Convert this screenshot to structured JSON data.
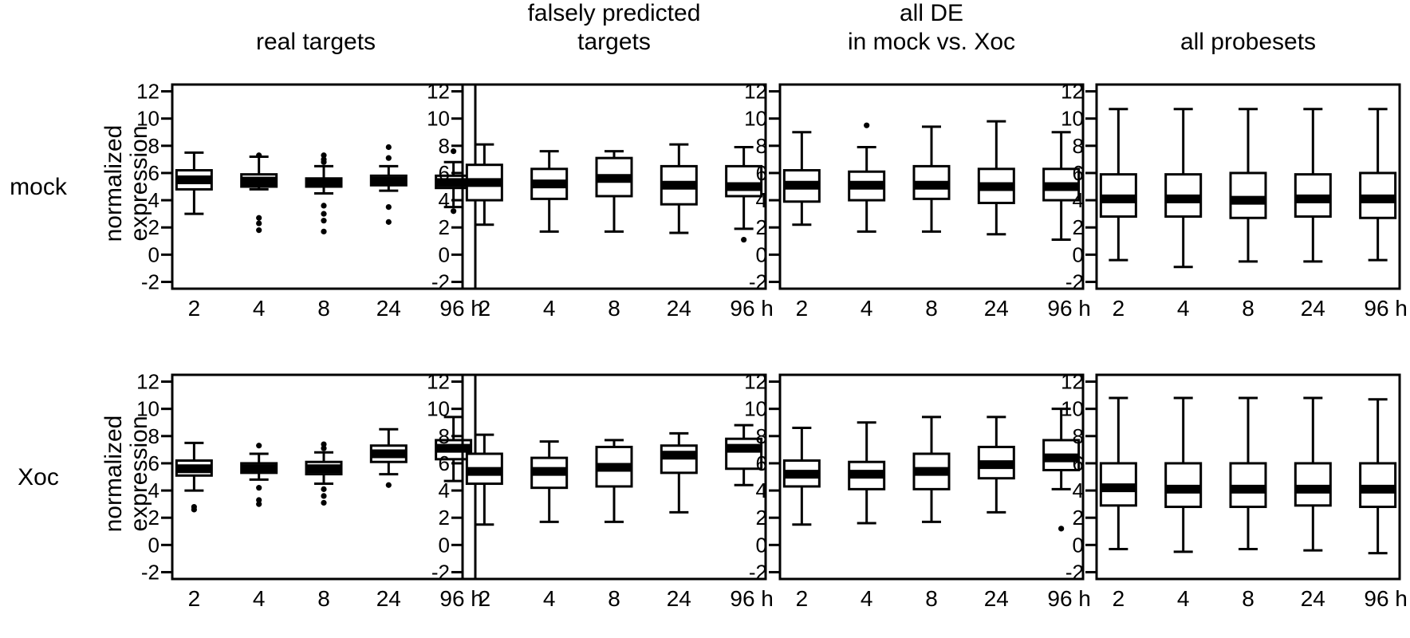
{
  "columns": [
    "real targets",
    "falsely predicted\ntargets",
    "all DE\nin mock vs. Xoc",
    "all probesets"
  ],
  "rows": [
    "mock",
    "Xoc"
  ],
  "ylabel": "normalized\nexpression",
  "categories": [
    "2",
    "4",
    "8",
    "24",
    "96 h"
  ],
  "yticks": [
    12,
    10,
    8,
    6,
    4,
    2,
    0,
    -2
  ],
  "chart_data": [
    {
      "type": "boxplot",
      "row": "mock",
      "column": "real targets",
      "categories": [
        "2",
        "4",
        "8",
        "24",
        "96 h"
      ],
      "ylim": [
        -2.5,
        12.5
      ],
      "boxes": [
        {
          "min": 3.0,
          "q1": 4.8,
          "median": 5.5,
          "q3": 6.2,
          "max": 7.5,
          "outliers": []
        },
        {
          "min": 4.8,
          "q1": 5.0,
          "median": 5.4,
          "q3": 5.9,
          "max": 7.2,
          "outliers": [
            2.7,
            2.3,
            1.8,
            7.3
          ]
        },
        {
          "min": 4.5,
          "q1": 5.0,
          "median": 5.3,
          "q3": 5.6,
          "max": 6.5,
          "outliers": [
            7.3,
            7.0,
            6.8,
            3.6,
            3.0,
            2.5,
            1.7
          ]
        },
        {
          "min": 4.7,
          "q1": 5.1,
          "median": 5.4,
          "q3": 5.8,
          "max": 6.5,
          "outliers": [
            7.9,
            7.1,
            3.5,
            2.4
          ]
        },
        {
          "min": 3.5,
          "q1": 4.9,
          "median": 5.3,
          "q3": 5.8,
          "max": 6.8,
          "outliers": [
            7.6,
            3.2
          ]
        }
      ]
    },
    {
      "type": "boxplot",
      "row": "mock",
      "column": "falsely predicted targets",
      "categories": [
        "2",
        "4",
        "8",
        "24",
        "96 h"
      ],
      "ylim": [
        -2.5,
        12.5
      ],
      "boxes": [
        {
          "min": 2.2,
          "q1": 4.0,
          "median": 5.3,
          "q3": 6.6,
          "max": 8.1,
          "outliers": []
        },
        {
          "min": 1.7,
          "q1": 4.1,
          "median": 5.2,
          "q3": 6.3,
          "max": 7.6,
          "outliers": []
        },
        {
          "min": 1.7,
          "q1": 4.3,
          "median": 5.6,
          "q3": 7.1,
          "max": 7.6,
          "outliers": []
        },
        {
          "min": 1.6,
          "q1": 3.7,
          "median": 5.1,
          "q3": 6.5,
          "max": 8.1,
          "outliers": []
        },
        {
          "min": 1.9,
          "q1": 4.3,
          "median": 5.0,
          "q3": 6.5,
          "max": 7.9,
          "outliers": [
            1.1
          ]
        }
      ]
    },
    {
      "type": "boxplot",
      "row": "mock",
      "column": "all DE in mock vs. Xoc",
      "categories": [
        "2",
        "4",
        "8",
        "24",
        "96 h"
      ],
      "ylim": [
        -2.5,
        12.5
      ],
      "boxes": [
        {
          "min": 2.2,
          "q1": 3.9,
          "median": 5.1,
          "q3": 6.2,
          "max": 9.0,
          "outliers": []
        },
        {
          "min": 1.7,
          "q1": 4.0,
          "median": 5.1,
          "q3": 6.1,
          "max": 7.9,
          "outliers": [
            9.5
          ]
        },
        {
          "min": 1.7,
          "q1": 4.1,
          "median": 5.1,
          "q3": 6.5,
          "max": 9.4,
          "outliers": []
        },
        {
          "min": 1.5,
          "q1": 3.8,
          "median": 5.0,
          "q3": 6.3,
          "max": 9.8,
          "outliers": []
        },
        {
          "min": 1.1,
          "q1": 4.0,
          "median": 5.0,
          "q3": 6.3,
          "max": 9.0,
          "outliers": []
        }
      ]
    },
    {
      "type": "boxplot",
      "row": "mock",
      "column": "all probesets",
      "categories": [
        "2",
        "4",
        "8",
        "24",
        "96 h"
      ],
      "ylim": [
        -2.5,
        12.5
      ],
      "boxes": [
        {
          "min": -0.4,
          "q1": 2.8,
          "median": 4.1,
          "q3": 5.9,
          "max": 10.7,
          "outliers": []
        },
        {
          "min": -0.9,
          "q1": 2.8,
          "median": 4.1,
          "q3": 5.9,
          "max": 10.7,
          "outliers": []
        },
        {
          "min": -0.5,
          "q1": 2.7,
          "median": 4.0,
          "q3": 6.0,
          "max": 10.7,
          "outliers": []
        },
        {
          "min": -0.5,
          "q1": 2.8,
          "median": 4.1,
          "q3": 5.9,
          "max": 10.7,
          "outliers": []
        },
        {
          "min": -0.4,
          "q1": 2.7,
          "median": 4.1,
          "q3": 6.0,
          "max": 10.7,
          "outliers": []
        }
      ]
    },
    {
      "type": "boxplot",
      "row": "Xoc",
      "column": "real targets",
      "categories": [
        "2",
        "4",
        "8",
        "24",
        "96 h"
      ],
      "ylim": [
        -2.5,
        12.5
      ],
      "boxes": [
        {
          "min": 4.0,
          "q1": 5.1,
          "median": 5.6,
          "q3": 6.2,
          "max": 7.5,
          "outliers": [
            2.8,
            2.6
          ]
        },
        {
          "min": 4.8,
          "q1": 5.3,
          "median": 5.6,
          "q3": 6.0,
          "max": 6.7,
          "outliers": [
            7.3,
            4.2,
            3.3,
            3.0
          ]
        },
        {
          "min": 4.5,
          "q1": 5.2,
          "median": 5.6,
          "q3": 6.1,
          "max": 6.8,
          "outliers": [
            7.4,
            7.1,
            4.1,
            3.6,
            3.1
          ]
        },
        {
          "min": 5.2,
          "q1": 6.1,
          "median": 6.7,
          "q3": 7.3,
          "max": 8.5,
          "outliers": [
            4.4
          ]
        },
        {
          "min": 4.7,
          "q1": 6.3,
          "median": 7.1,
          "q3": 7.7,
          "max": 9.4,
          "outliers": []
        }
      ]
    },
    {
      "type": "boxplot",
      "row": "Xoc",
      "column": "falsely predicted targets",
      "categories": [
        "2",
        "4",
        "8",
        "24",
        "96 h"
      ],
      "ylim": [
        -2.5,
        12.5
      ],
      "boxes": [
        {
          "min": 1.5,
          "q1": 4.5,
          "median": 5.4,
          "q3": 6.7,
          "max": 8.1,
          "outliers": []
        },
        {
          "min": 1.7,
          "q1": 4.2,
          "median": 5.4,
          "q3": 6.4,
          "max": 7.6,
          "outliers": []
        },
        {
          "min": 1.7,
          "q1": 4.3,
          "median": 5.7,
          "q3": 7.2,
          "max": 7.7,
          "outliers": []
        },
        {
          "min": 2.4,
          "q1": 5.3,
          "median": 6.6,
          "q3": 7.3,
          "max": 8.2,
          "outliers": []
        },
        {
          "min": 4.4,
          "q1": 5.6,
          "median": 7.1,
          "q3": 7.8,
          "max": 8.8,
          "outliers": []
        }
      ]
    },
    {
      "type": "boxplot",
      "row": "Xoc",
      "column": "all DE in mock vs. Xoc",
      "categories": [
        "2",
        "4",
        "8",
        "24",
        "96 h"
      ],
      "ylim": [
        -2.5,
        12.5
      ],
      "boxes": [
        {
          "min": 1.5,
          "q1": 4.3,
          "median": 5.2,
          "q3": 6.2,
          "max": 8.6,
          "outliers": []
        },
        {
          "min": 1.6,
          "q1": 4.1,
          "median": 5.2,
          "q3": 6.1,
          "max": 9.0,
          "outliers": []
        },
        {
          "min": 1.7,
          "q1": 4.1,
          "median": 5.4,
          "q3": 6.7,
          "max": 9.4,
          "outliers": []
        },
        {
          "min": 2.4,
          "q1": 4.9,
          "median": 5.9,
          "q3": 7.2,
          "max": 9.4,
          "outliers": []
        },
        {
          "min": 4.1,
          "q1": 5.5,
          "median": 6.4,
          "q3": 7.7,
          "max": 10.0,
          "outliers": [
            1.2
          ]
        }
      ]
    },
    {
      "type": "boxplot",
      "row": "Xoc",
      "column": "all probesets",
      "categories": [
        "2",
        "4",
        "8",
        "24",
        "96 h"
      ],
      "ylim": [
        -2.5,
        12.5
      ],
      "boxes": [
        {
          "min": -0.3,
          "q1": 2.9,
          "median": 4.2,
          "q3": 6.0,
          "max": 10.8,
          "outliers": []
        },
        {
          "min": -0.5,
          "q1": 2.8,
          "median": 4.1,
          "q3": 6.0,
          "max": 10.8,
          "outliers": []
        },
        {
          "min": -0.3,
          "q1": 2.8,
          "median": 4.1,
          "q3": 6.0,
          "max": 10.8,
          "outliers": []
        },
        {
          "min": -0.4,
          "q1": 2.9,
          "median": 4.1,
          "q3": 6.0,
          "max": 10.8,
          "outliers": []
        },
        {
          "min": -0.6,
          "q1": 2.8,
          "median": 4.1,
          "q3": 6.0,
          "max": 10.7,
          "outliers": []
        }
      ]
    }
  ]
}
